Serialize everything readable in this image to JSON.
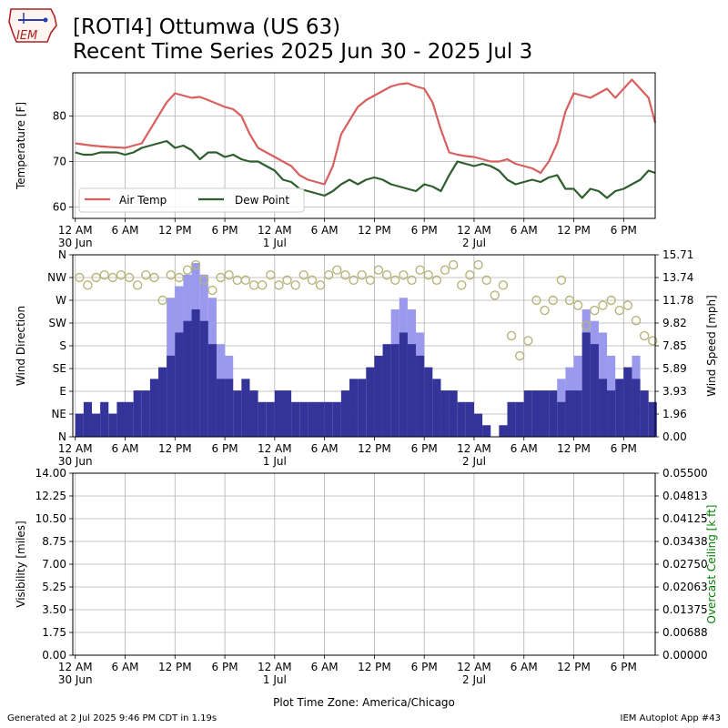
{
  "header": {
    "title_line1": "[ROTI4] Ottumwa (US 63)",
    "title_line2": "Recent Time Series 2025 Jun 30 - 2025 Jul 3",
    "logo_text": "IEM"
  },
  "footer": {
    "generated": "Generated at 2 Jul 2025 9:46 PM CDT in 1.19s",
    "app": "IEM Autoplot App #43"
  },
  "colors": {
    "air_temp": "#d95f5f",
    "dew_point": "#2e5e2e",
    "wind_gust_bar": "#9999ee",
    "wind_speed_bar": "#333399",
    "wind_dir_marker": "#b5b57a",
    "ceiling_label": "#008000",
    "grid": "#b0b0b0"
  },
  "chart_data": [
    {
      "type": "line",
      "ylabel": "Temperature [F]",
      "ylim": [
        57.5,
        89.5
      ],
      "xlim": [
        -0.3,
        69.8
      ],
      "x_unit": "hours since 12 AM 30 Jun",
      "x_ticks": [
        0,
        6,
        12,
        18,
        24,
        30,
        36,
        42,
        48,
        54,
        60,
        66
      ],
      "x_tick_labels": [
        "12 AM",
        "6 AM",
        "12 PM",
        "6 PM",
        "12 AM",
        "6 AM",
        "12 PM",
        "6 PM",
        "12 AM",
        "6 AM",
        "12 PM",
        "6 PM"
      ],
      "x_tick_sublabels": [
        "30 Jun",
        "",
        "",
        "",
        "1 Jul",
        "",
        "",
        "",
        "2 Jul",
        "",
        "",
        ""
      ],
      "y_ticks": [
        60,
        70,
        80
      ],
      "grid": true,
      "legend": "lower-left",
      "series": [
        {
          "name": "Air Temp",
          "x": [
            0,
            2,
            4,
            6,
            8,
            10,
            11,
            12,
            13,
            14,
            15,
            16,
            18,
            19,
            20,
            21,
            22,
            24,
            26,
            27,
            28,
            29,
            30,
            31,
            32,
            33,
            34,
            35,
            36,
            37,
            38,
            39,
            40,
            41,
            42,
            43,
            44,
            45,
            46,
            47,
            48,
            49,
            50,
            51,
            52,
            53,
            54,
            55,
            56,
            57,
            58,
            59,
            60,
            61,
            62,
            63,
            64,
            65,
            66,
            67,
            68,
            69,
            69.8
          ],
          "y": [
            74,
            73.5,
            73.2,
            73,
            74,
            80,
            83,
            85,
            84.5,
            84,
            84.2,
            83.5,
            82,
            81.5,
            80,
            76,
            73,
            71,
            69,
            67,
            66,
            65.5,
            65,
            69,
            76,
            79,
            82,
            83.5,
            84.5,
            85.5,
            86.5,
            87,
            87.2,
            86.5,
            86,
            83,
            77,
            72,
            71.5,
            71.2,
            71,
            70.5,
            70,
            70,
            70.5,
            69.5,
            69,
            68.5,
            67.5,
            70,
            74,
            81,
            85,
            84.5,
            84,
            85,
            86,
            84,
            86,
            88,
            86,
            84,
            78.5
          ]
        },
        {
          "name": "Dew Point",
          "x": [
            0,
            1,
            2,
            3,
            4,
            5,
            6,
            7,
            8,
            9,
            10,
            11,
            12,
            13,
            14,
            15,
            16,
            17,
            18,
            19,
            20,
            21,
            22,
            23,
            24,
            25,
            26,
            27,
            28,
            29,
            30,
            31,
            32,
            33,
            34,
            35,
            36,
            37,
            38,
            39,
            40,
            41,
            42,
            43,
            44,
            45,
            46,
            47,
            48,
            49,
            50,
            51,
            52,
            53,
            54,
            55,
            56,
            57,
            58,
            59,
            60,
            61,
            62,
            63,
            64,
            65,
            66,
            67,
            68,
            69,
            69.8
          ],
          "y": [
            72,
            71.5,
            71.5,
            72,
            72,
            72,
            71.5,
            72,
            73,
            73.5,
            74,
            74.5,
            73,
            73.5,
            72.5,
            70.5,
            72,
            72,
            71,
            71.5,
            70.5,
            70,
            70,
            69,
            68,
            66,
            65.5,
            64,
            63.5,
            63,
            62.5,
            63.5,
            65,
            66,
            65,
            66,
            66.5,
            66,
            65,
            64.5,
            64,
            63.5,
            65,
            64.5,
            63.5,
            67,
            70,
            69.5,
            69,
            69.5,
            69,
            68,
            66,
            65,
            65.5,
            66,
            65.5,
            66.5,
            67,
            64,
            64,
            62,
            64,
            63.5,
            62,
            63.5,
            64,
            65,
            66,
            68,
            67.5
          ]
        }
      ]
    },
    {
      "type": "bar",
      "ylabel": "Wind Direction",
      "y2label": "Wind Speed [mph]",
      "xlim": [
        -0.3,
        69.8
      ],
      "x_unit": "hours since 12 AM 30 Jun",
      "x_ticks": [
        0,
        6,
        12,
        18,
        24,
        30,
        36,
        42,
        48,
        54,
        60,
        66
      ],
      "x_tick_labels": [
        "12 AM",
        "6 AM",
        "12 PM",
        "6 PM",
        "12 AM",
        "6 AM",
        "12 PM",
        "6 PM",
        "12 AM",
        "6 AM",
        "12 PM",
        "6 PM"
      ],
      "x_tick_sublabels": [
        "30 Jun",
        "",
        "",
        "",
        "1 Jul",
        "",
        "",
        "",
        "2 Jul",
        "",
        "",
        ""
      ],
      "y_ticks": [
        0,
        45,
        90,
        135,
        180,
        225,
        270,
        315,
        360
      ],
      "y_tick_labels": [
        "N",
        "NE",
        "E",
        "SE",
        "S",
        "SW",
        "W",
        "NW",
        "N"
      ],
      "y2_ticks": [
        0.0,
        1.96,
        3.93,
        5.89,
        7.85,
        9.82,
        11.78,
        13.74,
        15.71
      ],
      "y2_tick_labels": [
        "0.00",
        "1.96",
        "3.93",
        "5.89",
        "7.85",
        "9.82",
        "11.78",
        "13.74",
        "15.71"
      ],
      "y2lim": [
        0,
        15.71
      ],
      "grid": true,
      "wind_x": [
        0,
        1,
        2,
        3,
        4,
        5,
        6,
        7,
        8,
        9,
        10,
        11,
        12,
        13,
        14,
        15,
        16,
        17,
        18,
        19,
        20,
        21,
        22,
        23,
        24,
        25,
        26,
        27,
        28,
        29,
        30,
        31,
        32,
        33,
        34,
        35,
        36,
        37,
        38,
        39,
        40,
        41,
        42,
        43,
        44,
        45,
        46,
        47,
        48,
        49,
        50,
        51,
        52,
        53,
        54,
        55,
        56,
        57,
        58,
        59,
        60,
        61,
        62,
        63,
        64,
        65,
        66,
        67,
        68,
        69
      ],
      "wind_speed": [
        2,
        3,
        2,
        3,
        2,
        3,
        3,
        4,
        4,
        5,
        6,
        7,
        9,
        10,
        11,
        10,
        8,
        5,
        5,
        4,
        5,
        4,
        3,
        3,
        4,
        4,
        3,
        3,
        3,
        3,
        3,
        3,
        4,
        5,
        5,
        6,
        7,
        8,
        8,
        9,
        8,
        7,
        6,
        5,
        4,
        4,
        3,
        3,
        2,
        1,
        0,
        1,
        3,
        3,
        4,
        4,
        4,
        4,
        3,
        4,
        4,
        9,
        8,
        5,
        4,
        5,
        6,
        5,
        4,
        3
      ],
      "wind_gust": [
        0,
        0,
        0,
        0,
        0,
        0,
        0,
        0,
        0,
        0,
        0,
        12,
        13,
        14,
        15,
        14,
        12,
        8,
        7,
        0,
        0,
        0,
        0,
        0,
        0,
        0,
        0,
        0,
        0,
        0,
        0,
        0,
        0,
        0,
        0,
        0,
        0,
        0,
        11,
        12,
        11,
        9,
        0,
        0,
        0,
        0,
        0,
        0,
        0,
        0,
        0,
        0,
        0,
        0,
        0,
        0,
        0,
        0,
        5,
        6,
        7,
        11,
        10,
        9,
        7,
        0,
        6,
        7,
        0,
        0
      ],
      "wind_dir": [
        315,
        300,
        315,
        320,
        315,
        320,
        315,
        300,
        320,
        315,
        270,
        320,
        315,
        330,
        340,
        310,
        290,
        315,
        320,
        310,
        310,
        300,
        300,
        320,
        300,
        310,
        300,
        320,
        310,
        300,
        320,
        330,
        320,
        310,
        320,
        310,
        330,
        320,
        310,
        320,
        310,
        330,
        320,
        310,
        330,
        340,
        300,
        320,
        340,
        310,
        280,
        300,
        200,
        160,
        190,
        270,
        250,
        270,
        310,
        270,
        260,
        220,
        250,
        260,
        270,
        250,
        260,
        230,
        200,
        190
      ],
      "dir_scatter_points": 70
    },
    {
      "type": "line",
      "ylabel": "Visibility [miles]",
      "y2label": "Overcast Ceiling [k ft]",
      "xlim": [
        -0.3,
        69.8
      ],
      "x_unit": "hours since 12 AM 30 Jun",
      "x_ticks": [
        0,
        6,
        12,
        18,
        24,
        30,
        36,
        42,
        48,
        54,
        60,
        66
      ],
      "x_tick_labels": [
        "12 AM",
        "6 AM",
        "12 PM",
        "6 PM",
        "12 AM",
        "6 AM",
        "12 PM",
        "6 PM",
        "12 AM",
        "6 AM",
        "12 PM",
        "6 PM"
      ],
      "x_tick_sublabels": [
        "30 Jun",
        "",
        "",
        "",
        "1 Jul",
        "",
        "",
        "",
        "2 Jul",
        "",
        "",
        ""
      ],
      "xlabel": "Plot Time Zone: America/Chicago",
      "y_ticks": [
        0.0,
        1.75,
        3.5,
        5.25,
        7.0,
        8.75,
        10.5,
        12.25,
        14.0
      ],
      "y_tick_labels": [
        "0.00",
        "1.75",
        "3.50",
        "5.25",
        "7.00",
        "8.75",
        "10.50",
        "12.25",
        "14.00"
      ],
      "y2_tick_labels": [
        "0.00000",
        "0.00688",
        "0.01375",
        "0.02063",
        "0.02750",
        "0.03438",
        "0.04125",
        "0.04813",
        "0.05500"
      ],
      "ylim": [
        0,
        14
      ],
      "y2lim": [
        0,
        0.055
      ],
      "grid": true,
      "series": []
    }
  ]
}
